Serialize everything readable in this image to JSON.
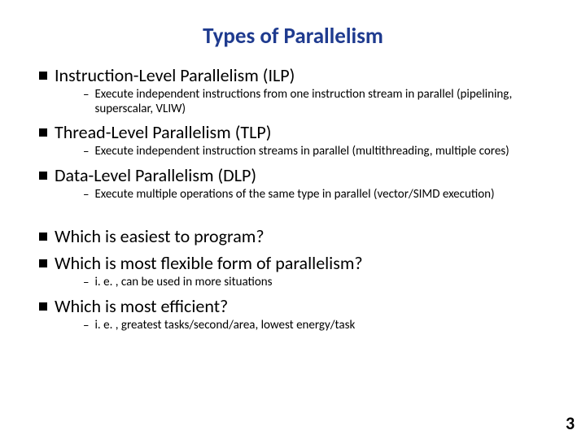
{
  "title": {
    "text": "Types of Parallelism",
    "color": "#1f3b8f",
    "fontsize": 27
  },
  "l1_fontsize": 22,
  "l2_fontsize": 15,
  "items": [
    {
      "heading": "Instruction-Level Parallelism (ILP)",
      "subs": [
        "Execute independent instructions from one instruction stream in parallel (pipelining, superscalar, VLIW)"
      ]
    },
    {
      "heading": "Thread-Level Parallelism (TLP)",
      "subs": [
        "Execute independent instruction streams in parallel (multithreading, multiple cores)"
      ]
    },
    {
      "heading": "Data-Level Parallelism (DLP)",
      "subs": [
        "Execute multiple operations of the same type in parallel (vector/SIMD execution)"
      ]
    }
  ],
  "questions": [
    {
      "heading": "Which is easiest to program?",
      "subs": []
    },
    {
      "heading": "Which is most flexible form of parallelism?",
      "subs": [
        "i. e. , can be used in more situations"
      ]
    },
    {
      "heading": "Which is most efficient?",
      "subs": [
        "i. e. , greatest tasks/second/area, lowest energy/task"
      ]
    }
  ],
  "page_number": "3",
  "page_number_fontsize": 22
}
